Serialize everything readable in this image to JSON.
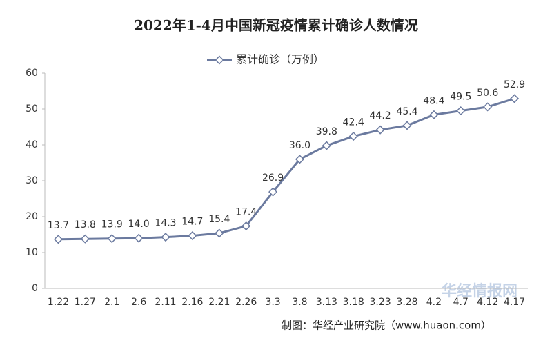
{
  "chart_data": {
    "type": "line",
    "title": "2022年1-4月中国新冠疫情累计确诊人数情况",
    "categories": [
      "1.22",
      "1.27",
      "2.1",
      "2.6",
      "2.11",
      "2.16",
      "2.21",
      "2.26",
      "3.3",
      "3.8",
      "3.13",
      "3.18",
      "3.23",
      "3.28",
      "4.2",
      "4.7",
      "4.12",
      "4.17"
    ],
    "series": [
      {
        "name": "累计确诊（万例）",
        "color": "#6b7a9f",
        "values": [
          13.7,
          13.8,
          13.9,
          14.0,
          14.3,
          14.7,
          15.4,
          17.4,
          26.9,
          36.0,
          39.8,
          42.4,
          44.2,
          45.4,
          48.4,
          49.5,
          50.6,
          52.9
        ],
        "value_labels": [
          "13.7",
          "13.8",
          "13.9",
          "14.0",
          "14.3",
          "14.7",
          "15.4",
          "17.4",
          "26.9",
          "36.0",
          "39.8",
          "42.4",
          "44.2",
          "45.4",
          "48.4",
          "49.5",
          "50.6",
          "52.9"
        ]
      }
    ],
    "ylim": [
      0,
      60
    ],
    "yticks": [
      0,
      10,
      20,
      30,
      40,
      50,
      60
    ],
    "grid": false,
    "legend": "top",
    "source": "制图：华经产业研究院（www.huaon.com）",
    "watermark": "华经情报网"
  }
}
